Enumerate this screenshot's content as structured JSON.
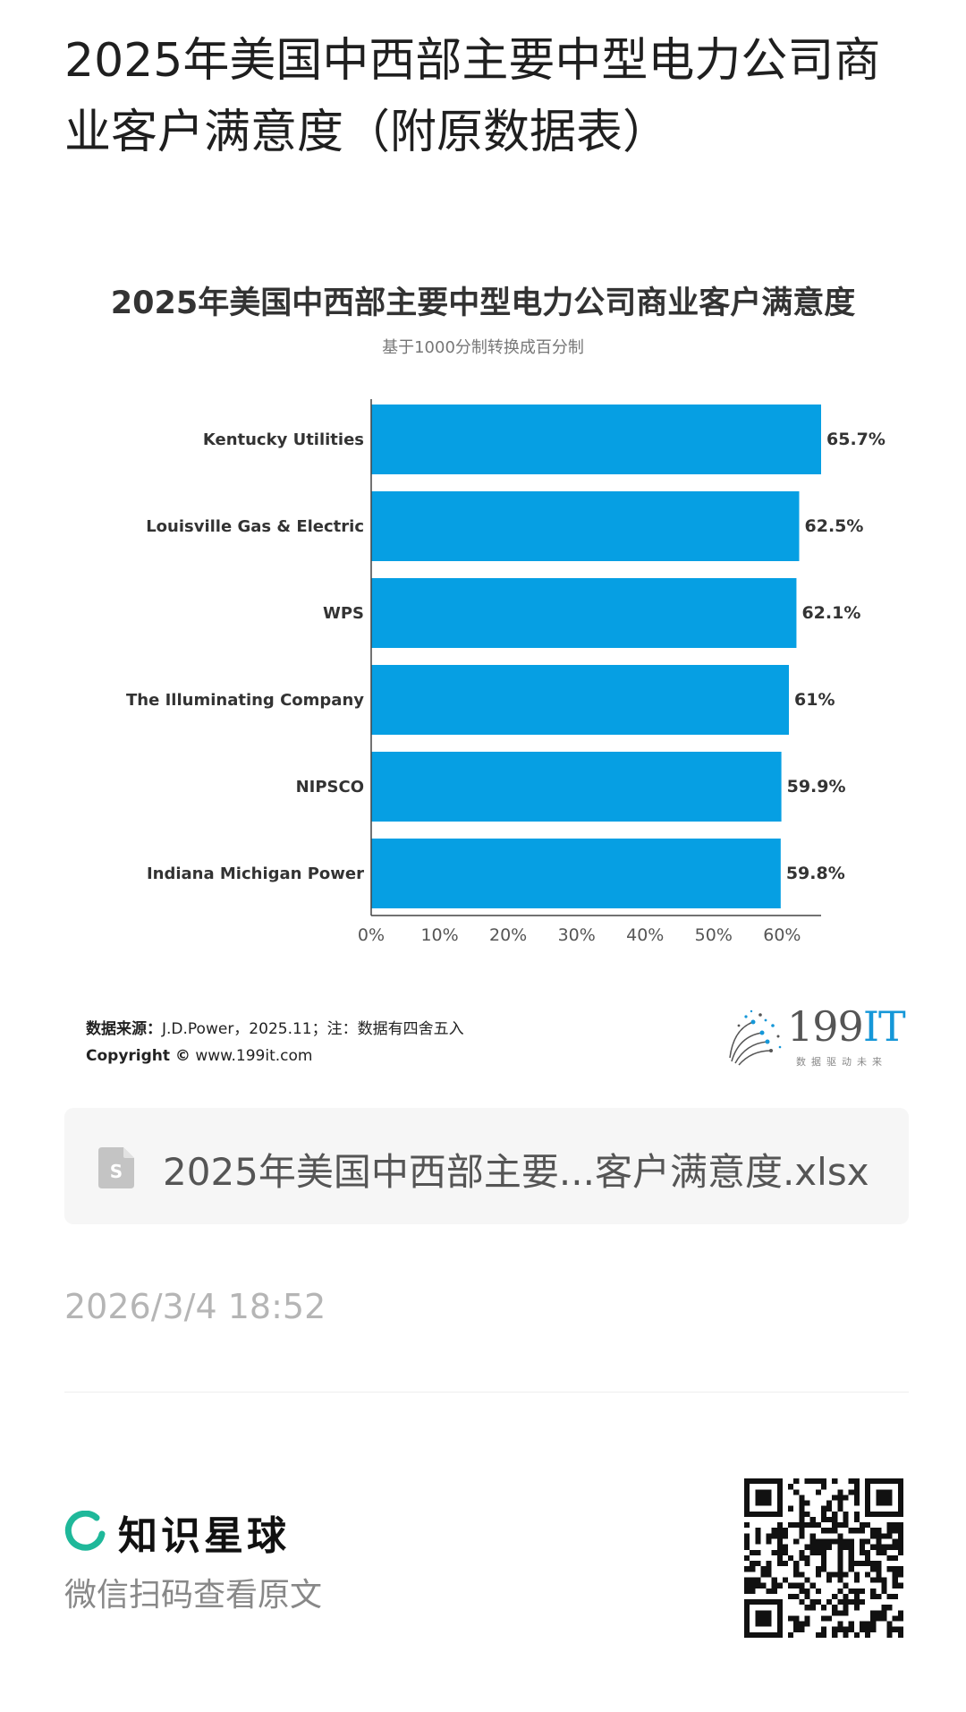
{
  "page": {
    "title": "2025年美国中西部主要中型电力公司商业客户满意度（附原数据表）"
  },
  "chart": {
    "title": "2025年美国中西部主要中型电力公司商业客户满意度",
    "subtitle": "基于1000分制转换成百分制",
    "source_label": "数据来源：",
    "source_text": "J.D.Power，2025.11；注：数据有四舍五入",
    "copyright_label": "Copyright ©",
    "copyright_text": " www.199it.com",
    "brand_number": "199",
    "brand_letters": "IT",
    "brand_slogan": "数据驱动未来",
    "bar_color": "#069fe3"
  },
  "chart_data": {
    "type": "bar",
    "orientation": "horizontal",
    "title": "2025年美国中西部主要中型电力公司商业客户满意度",
    "subtitle": "基于1000分制转换成百分制",
    "categories": [
      "Kentucky Utilities",
      "Louisville Gas & Electric",
      "WPS",
      "The Illuminating Company",
      "NIPSCO",
      "Indiana Michigan Power"
    ],
    "values": [
      65.7,
      62.5,
      62.1,
      61,
      59.9,
      59.8
    ],
    "value_labels": [
      "65.7%",
      "62.5%",
      "62.1%",
      "61%",
      "59.9%",
      "59.8%"
    ],
    "xlim": [
      0,
      65.7
    ],
    "x_ticks": [
      0,
      10,
      20,
      30,
      40,
      50,
      60
    ],
    "x_tick_labels": [
      "0%",
      "10%",
      "20%",
      "30%",
      "40%",
      "50%",
      "60%"
    ],
    "grid": false,
    "legend": "none"
  },
  "file": {
    "name": "2025年美国中西部主要...客户满意度.xlsx",
    "icon": "spreadsheet-file-icon"
  },
  "meta": {
    "timestamp": "2026/3/4 18:52"
  },
  "footer": {
    "brand_name": "知识星球",
    "hint": "微信扫码查看原文",
    "brand_color": "#1fb89a"
  }
}
